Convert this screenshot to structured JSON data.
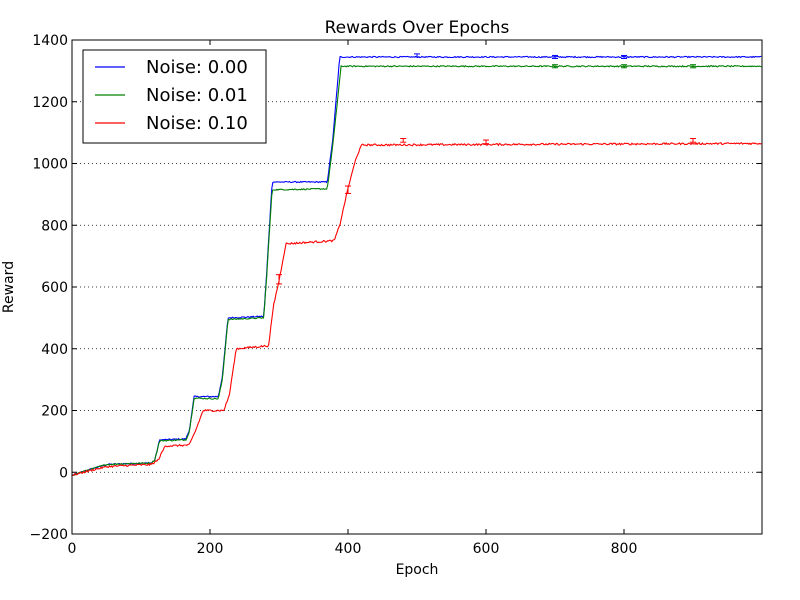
{
  "chart_data": {
    "type": "line",
    "title": "Rewards Over Epochs",
    "xlabel": "Epoch",
    "ylabel": "Reward",
    "xlim": [
      0,
      1000
    ],
    "ylim": [
      -200,
      1400
    ],
    "xticks": [
      0,
      200,
      400,
      600,
      800
    ],
    "yticks": [
      -200,
      0,
      200,
      400,
      600,
      800,
      1000,
      1200,
      1400
    ],
    "grid": "horizontal-dotted",
    "legend_position": "top-left",
    "series": [
      {
        "name": "Noise: 0.00",
        "color": "#0000ff",
        "points": [
          [
            0,
            -10
          ],
          [
            20,
            5
          ],
          [
            50,
            25
          ],
          [
            80,
            28
          ],
          [
            115,
            30
          ],
          [
            120,
            40
          ],
          [
            127,
            105
          ],
          [
            165,
            108
          ],
          [
            170,
            135
          ],
          [
            177,
            245
          ],
          [
            212,
            245
          ],
          [
            218,
            310
          ],
          [
            226,
            500
          ],
          [
            278,
            505
          ],
          [
            282,
            640
          ],
          [
            290,
            940
          ],
          [
            370,
            940
          ],
          [
            378,
            1080
          ],
          [
            388,
            1345
          ],
          [
            999,
            1345
          ]
        ],
        "error_bars": [
          [
            500,
            1350,
            5
          ],
          [
            700,
            1345,
            5
          ],
          [
            800,
            1345,
            5
          ]
        ]
      },
      {
        "name": "Noise: 0.01",
        "color": "#008000",
        "points": [
          [
            0,
            -10
          ],
          [
            20,
            5
          ],
          [
            50,
            25
          ],
          [
            80,
            28
          ],
          [
            115,
            30
          ],
          [
            120,
            40
          ],
          [
            127,
            102
          ],
          [
            165,
            105
          ],
          [
            170,
            130
          ],
          [
            177,
            240
          ],
          [
            212,
            238
          ],
          [
            218,
            300
          ],
          [
            226,
            495
          ],
          [
            278,
            500
          ],
          [
            282,
            630
          ],
          [
            290,
            915
          ],
          [
            370,
            918
          ],
          [
            378,
            1060
          ],
          [
            390,
            1315
          ],
          [
            999,
            1315
          ]
        ],
        "error_bars": [
          [
            700,
            1315,
            5
          ],
          [
            800,
            1315,
            5
          ],
          [
            900,
            1315,
            5
          ]
        ]
      },
      {
        "name": "Noise: 0.10",
        "color": "#ff0000",
        "points": [
          [
            0,
            -10
          ],
          [
            20,
            2
          ],
          [
            50,
            18
          ],
          [
            80,
            22
          ],
          [
            115,
            25
          ],
          [
            125,
            40
          ],
          [
            135,
            85
          ],
          [
            170,
            88
          ],
          [
            180,
            140
          ],
          [
            190,
            200
          ],
          [
            220,
            200
          ],
          [
            228,
            250
          ],
          [
            238,
            400
          ],
          [
            285,
            410
          ],
          [
            292,
            540
          ],
          [
            300,
            620
          ],
          [
            310,
            740
          ],
          [
            380,
            750
          ],
          [
            388,
            800
          ],
          [
            400,
            920
          ],
          [
            412,
            1020
          ],
          [
            420,
            1060
          ],
          [
            999,
            1065
          ]
        ],
        "error_bars": [
          [
            300,
            625,
            15
          ],
          [
            400,
            915,
            12
          ],
          [
            480,
            1075,
            6
          ],
          [
            600,
            1070,
            6
          ],
          [
            900,
            1075,
            6
          ]
        ]
      }
    ]
  }
}
